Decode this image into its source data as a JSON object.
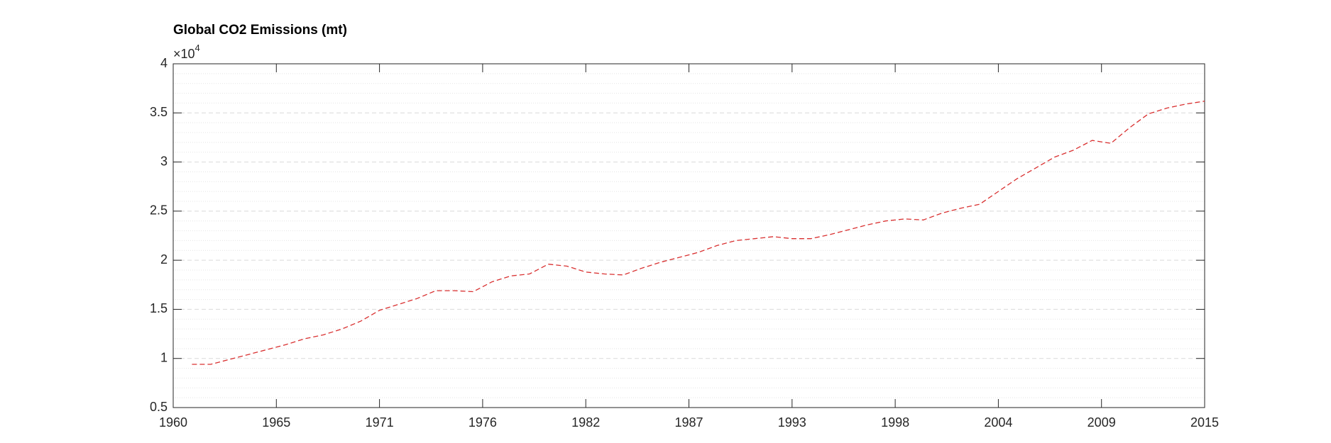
{
  "chart_data": {
    "type": "line",
    "title": "Global CO2 Emissions (mt)",
    "y_exponent_base": "×10",
    "y_exponent_power": "4",
    "x": [
      1961,
      1962,
      1963,
      1964,
      1965,
      1966,
      1967,
      1968,
      1969,
      1970,
      1971,
      1972,
      1973,
      1974,
      1975,
      1976,
      1977,
      1978,
      1979,
      1980,
      1981,
      1982,
      1983,
      1984,
      1985,
      1986,
      1987,
      1988,
      1989,
      1990,
      1991,
      1992,
      1993,
      1994,
      1995,
      1996,
      1997,
      1998,
      1999,
      2000,
      2001,
      2002,
      2003,
      2004,
      2005,
      2006,
      2007,
      2008,
      2009,
      2010,
      2011,
      2012,
      2013,
      2014,
      2015
    ],
    "series": [
      {
        "color": "#d93030",
        "line_style": "dashed",
        "values": [
          9400,
          9400,
          9900,
          10400,
          10900,
          11400,
          12000,
          12400,
          13000,
          13800,
          14900,
          15500,
          16100,
          16900,
          16900,
          16800,
          17800,
          18400,
          18600,
          19600,
          19400,
          18800,
          18600,
          18500,
          19200,
          19800,
          20300,
          20800,
          21500,
          22000,
          22200,
          22400,
          22200,
          22200,
          22600,
          23100,
          23600,
          24000,
          24200,
          24100,
          24800,
          25300,
          25700,
          27000,
          28300,
          29400,
          30500,
          31200,
          32200,
          31900,
          33500,
          34900,
          35500,
          35900,
          36200
        ]
      }
    ],
    "xlim": [
      1960,
      2015
    ],
    "xticks": [
      1960,
      {
        "value": 1965.5,
        "label": "1965"
      },
      1971,
      {
        "value": 1976.5,
        "label": "1976"
      },
      1982,
      {
        "value": 1987.5,
        "label": "1987"
      },
      1993,
      {
        "value": 1998.5,
        "label": "1998"
      },
      2004,
      {
        "value": 2009.5,
        "label": "2009"
      },
      2015
    ],
    "ylim": [
      5000,
      40000
    ],
    "yticks": [
      {
        "value": 5000,
        "label": "0.5"
      },
      {
        "value": 10000,
        "label": "1"
      },
      {
        "value": 15000,
        "label": "1.5"
      },
      {
        "value": 20000,
        "label": "2"
      },
      {
        "value": 25000,
        "label": "2.5"
      },
      {
        "value": 30000,
        "label": "3"
      },
      {
        "value": 35000,
        "label": "3.5"
      },
      {
        "value": 40000,
        "label": "4"
      }
    ],
    "grid": true,
    "minor_grid": true
  }
}
